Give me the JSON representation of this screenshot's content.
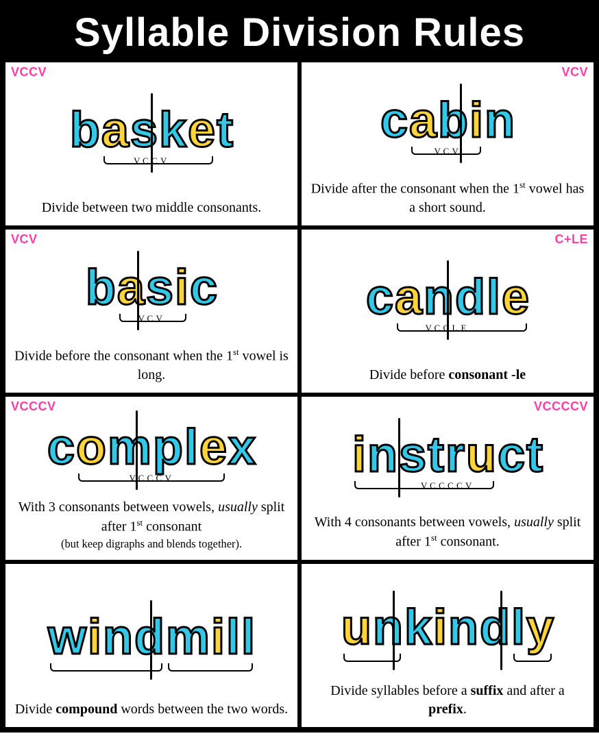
{
  "title": "Syllable Division Rules",
  "colors": {
    "cyan": "#33c8e8",
    "yellow": "#ffd43b",
    "pink": "#ff3ea5",
    "black": "#000000",
    "white": "#ffffff"
  },
  "cells": [
    {
      "tag": "VCCV",
      "tag_side": "left",
      "letters": [
        {
          "ch": "b",
          "c": "cyan"
        },
        {
          "ch": "a",
          "c": "yellow"
        },
        {
          "ch": "s",
          "c": "cyan"
        },
        {
          "ch": "k",
          "c": "cyan"
        },
        {
          "ch": "e",
          "c": "yellow"
        },
        {
          "ch": "t",
          "c": "cyan"
        }
      ],
      "dividers": [
        50
      ],
      "brackets": [
        {
          "from": 1,
          "to": 4
        }
      ],
      "underlabels": [
        {
          "at": 1,
          "t": "v"
        },
        {
          "at": 2,
          "t": "C"
        },
        {
          "at": 3,
          "t": "C"
        },
        {
          "at": 4,
          "t": "v"
        }
      ],
      "caption_html": "Divide between two middle consonants."
    },
    {
      "tag": "VCV",
      "tag_side": "right",
      "letters": [
        {
          "ch": "c",
          "c": "cyan"
        },
        {
          "ch": "a",
          "c": "yellow"
        },
        {
          "ch": "b",
          "c": "cyan"
        },
        {
          "ch": "i",
          "c": "yellow"
        },
        {
          "ch": "n",
          "c": "cyan"
        }
      ],
      "dividers": [
        60
      ],
      "brackets": [
        {
          "from": 1,
          "to": 3
        }
      ],
      "underlabels": [
        {
          "at": 1,
          "t": "v"
        },
        {
          "at": 2,
          "t": "C"
        },
        {
          "at": 3,
          "t": "V"
        }
      ],
      "caption_html": "Divide after the consonant when the 1<span class='sup'>st</span> vowel has a short sound."
    },
    {
      "tag": "VCV",
      "tag_side": "left",
      "letters": [
        {
          "ch": "b",
          "c": "cyan"
        },
        {
          "ch": "a",
          "c": "yellow"
        },
        {
          "ch": "s",
          "c": "cyan"
        },
        {
          "ch": "i",
          "c": "yellow"
        },
        {
          "ch": "c",
          "c": "cyan"
        }
      ],
      "dividers": [
        40
      ],
      "brackets": [
        {
          "from": 1,
          "to": 3
        }
      ],
      "underlabels": [
        {
          "at": 1,
          "t": "v"
        },
        {
          "at": 2,
          "t": "C"
        },
        {
          "at": 3,
          "t": "V"
        }
      ],
      "caption_html": "Divide before the consonant when the 1<span class='sup'>st</span> vowel is long."
    },
    {
      "tag": "C+LE",
      "tag_side": "right",
      "letters": [
        {
          "ch": "c",
          "c": "cyan"
        },
        {
          "ch": "a",
          "c": "yellow"
        },
        {
          "ch": "n",
          "c": "cyan"
        },
        {
          "ch": "d",
          "c": "cyan"
        },
        {
          "ch": "l",
          "c": "cyan"
        },
        {
          "ch": "e",
          "c": "yellow"
        }
      ],
      "dividers": [
        50
      ],
      "brackets": [
        {
          "from": 1,
          "to": 5
        }
      ],
      "underlabels": [
        {
          "at": 1,
          "t": "v"
        },
        {
          "at": 2,
          "t": "C"
        },
        {
          "at": 3,
          "t": "C"
        },
        {
          "at": 4,
          "t": "L"
        },
        {
          "at": 5,
          "t": "e"
        }
      ],
      "caption_html": "Divide before <b>consonant -le</b>"
    },
    {
      "tag": "VCCCV",
      "tag_side": "left",
      "letters": [
        {
          "ch": "c",
          "c": "cyan"
        },
        {
          "ch": "o",
          "c": "yellow"
        },
        {
          "ch": "m",
          "c": "cyan"
        },
        {
          "ch": "p",
          "c": "cyan"
        },
        {
          "ch": "l",
          "c": "cyan"
        },
        {
          "ch": "e",
          "c": "yellow"
        },
        {
          "ch": "x",
          "c": "cyan"
        }
      ],
      "dividers": [
        43
      ],
      "brackets": [
        {
          "from": 1,
          "to": 5
        }
      ],
      "underlabels": [
        {
          "at": 1,
          "t": "v"
        },
        {
          "at": 2,
          "t": "C"
        },
        {
          "at": 3,
          "t": "C"
        },
        {
          "at": 4,
          "t": "C"
        },
        {
          "at": 5,
          "t": "v"
        }
      ],
      "caption_html": "With 3 consonants between vowels, <i>usually</i> split after 1<span class='sup'>st</span> consonant <span class='small'>(but keep digraphs and blends together).</span>"
    },
    {
      "tag": "VCCCCV",
      "tag_side": "right",
      "letters": [
        {
          "ch": "i",
          "c": "yellow"
        },
        {
          "ch": "n",
          "c": "cyan"
        },
        {
          "ch": "s",
          "c": "cyan"
        },
        {
          "ch": "t",
          "c": "cyan"
        },
        {
          "ch": "r",
          "c": "cyan"
        },
        {
          "ch": "u",
          "c": "yellow"
        },
        {
          "ch": "c",
          "c": "cyan"
        },
        {
          "ch": "t",
          "c": "cyan"
        }
      ],
      "dividers": [
        25
      ],
      "brackets": [
        {
          "from": 0,
          "to": 5
        }
      ],
      "underlabels": [
        {
          "at": 0,
          "t": "v"
        },
        {
          "at": 1,
          "t": "C"
        },
        {
          "at": 2,
          "t": "C"
        },
        {
          "at": 3,
          "t": "C"
        },
        {
          "at": 4,
          "t": "C"
        },
        {
          "at": 5,
          "t": "v"
        }
      ],
      "caption_html": "With 4 consonants between vowels, <i>usually</i> split after 1<span class='sup'>st</span> consonant."
    },
    {
      "tag": "",
      "tag_side": "left",
      "letters": [
        {
          "ch": "w",
          "c": "cyan"
        },
        {
          "ch": "i",
          "c": "yellow"
        },
        {
          "ch": "n",
          "c": "cyan"
        },
        {
          "ch": "d",
          "c": "cyan"
        },
        {
          "ch": "m",
          "c": "cyan"
        },
        {
          "ch": "i",
          "c": "yellow"
        },
        {
          "ch": "l",
          "c": "cyan"
        },
        {
          "ch": "l",
          "c": "cyan"
        }
      ],
      "dividers": [
        50
      ],
      "brackets": [
        {
          "from": 0,
          "to": 3
        },
        {
          "from": 4,
          "to": 7
        }
      ],
      "underlabels": [],
      "caption_html": "Divide <b>compound</b> words between the two words."
    },
    {
      "tag": "",
      "tag_side": "left",
      "letters": [
        {
          "ch": "u",
          "c": "yellow"
        },
        {
          "ch": "n",
          "c": "cyan"
        },
        {
          "ch": "k",
          "c": "cyan"
        },
        {
          "ch": "i",
          "c": "yellow"
        },
        {
          "ch": "n",
          "c": "cyan"
        },
        {
          "ch": "d",
          "c": "cyan"
        },
        {
          "ch": "l",
          "c": "cyan"
        },
        {
          "ch": "y",
          "c": "yellow"
        }
      ],
      "dividers": [
        25,
        75
      ],
      "brackets": [
        {
          "from": 0,
          "to": 1
        },
        {
          "from": 6,
          "to": 7
        }
      ],
      "underlabels": [],
      "caption_html": "Divide syllables before a <b>suffix</b> and after a <b>prefix</b>."
    }
  ]
}
